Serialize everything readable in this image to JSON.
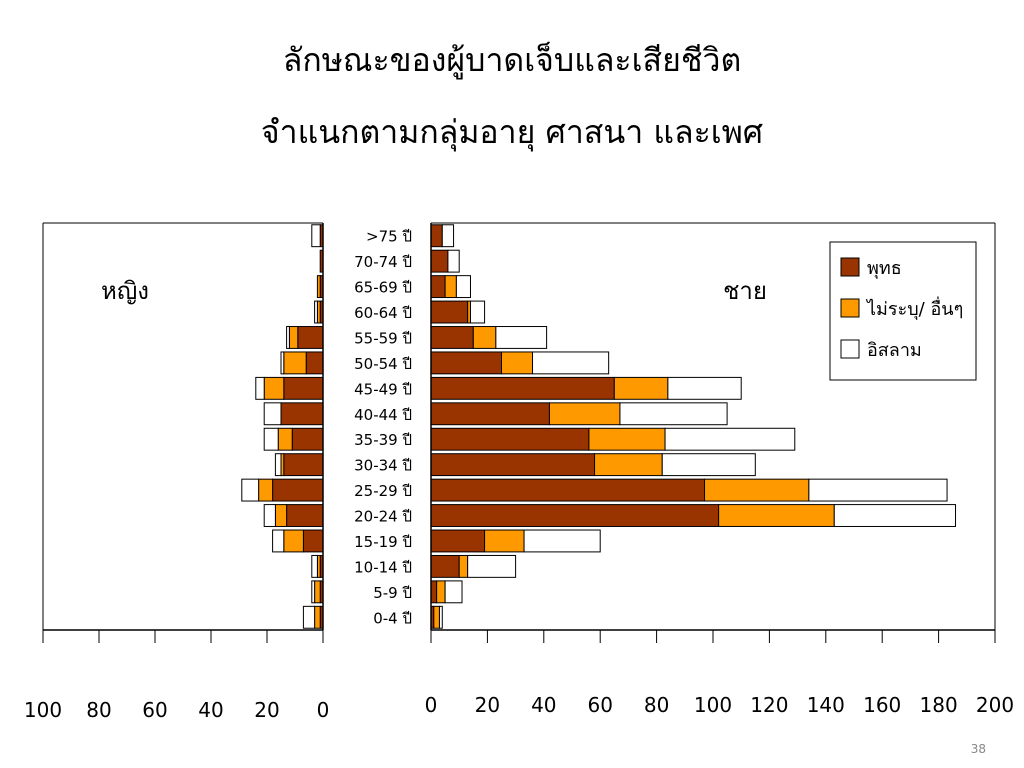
{
  "slide": {
    "title_line1": "ลักษณะของผู้บาดเจ็บและเสียชีวิต",
    "title_line2": "จำแนกตามกลุ่มอายุ ศาสนา และเพศ",
    "page_number": "38"
  },
  "chart_data": {
    "type": "bar",
    "orientation": "horizontal-stacked-pyramid",
    "categories": [
      ">75 ปี",
      "70-74 ปี",
      "65-69 ปี",
      "60-64 ปี",
      "55-59 ปี",
      "50-54 ปี",
      "45-49 ปี",
      "40-44 ปี",
      "35-39 ปี",
      "30-34 ปี",
      "25-29 ปี",
      "20-24 ปี",
      "15-19 ปี",
      "10-14 ปี",
      "5-9 ปี",
      "0-4 ปี"
    ],
    "colors": {
      "พุทธ": "#993300",
      "ไม่ระบุ/ อื่นๆ": "#FF9900",
      "อิสลาม": "#FFFFFF"
    },
    "legend": {
      "placement": "top-right",
      "entries": [
        "พุทธ",
        "ไม่ระบุ/ อื่นๆ",
        "อิสลาม"
      ]
    },
    "female": {
      "label": "หญิง",
      "xlim": [
        100,
        0
      ],
      "ticks": [
        "100",
        "80",
        "60",
        "40",
        "20",
        "0"
      ],
      "series": [
        {
          "name": "พุทธ",
          "values": [
            1,
            1,
            1,
            1,
            9,
            6,
            14,
            15,
            11,
            14,
            18,
            13,
            7,
            1,
            1,
            1
          ]
        },
        {
          "name": "ไม่ระบุ/ อื่นๆ",
          "values": [
            0,
            0,
            1,
            1,
            3,
            8,
            7,
            0,
            5,
            1,
            5,
            4,
            7,
            1,
            2,
            2
          ]
        },
        {
          "name": "อิสลาม",
          "values": [
            3,
            0,
            0,
            1,
            1,
            1,
            3,
            6,
            5,
            2,
            6,
            4,
            4,
            2,
            1,
            4
          ]
        }
      ]
    },
    "male": {
      "label": "ชาย",
      "xlim": [
        0,
        200
      ],
      "ticks": [
        "0",
        "20",
        "40",
        "60",
        "80",
        "100",
        "120",
        "140",
        "160",
        "180",
        "200"
      ],
      "series": [
        {
          "name": "พุทธ",
          "values": [
            4,
            6,
            5,
            13,
            15,
            25,
            65,
            42,
            56,
            58,
            97,
            102,
            19,
            10,
            2,
            1
          ]
        },
        {
          "name": "ไม่ระบุ/ อื่นๆ",
          "values": [
            0,
            0,
            4,
            1,
            8,
            11,
            19,
            25,
            27,
            24,
            37,
            41,
            14,
            3,
            3,
            2
          ]
        },
        {
          "name": "อิสลาม",
          "values": [
            4,
            4,
            5,
            5,
            18,
            27,
            26,
            38,
            46,
            33,
            49,
            43,
            27,
            17,
            6,
            1
          ]
        }
      ]
    }
  }
}
